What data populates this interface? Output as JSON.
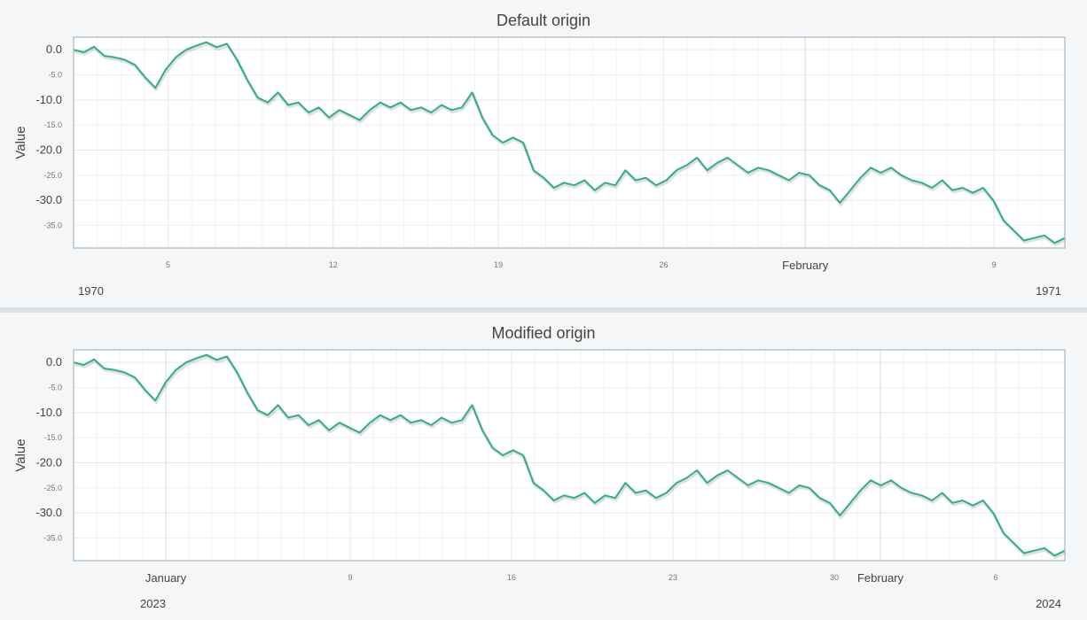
{
  "colors": {
    "line": "#2fae88",
    "grid": "#e6e6e6",
    "frame": "#a8b6c2",
    "background": "#ffffff"
  },
  "chart_data": [
    {
      "type": "line",
      "title": "Default origin",
      "ylabel": "Value",
      "xlabel": "",
      "ylim": [
        -39.5,
        2.5
      ],
      "yticks_major": [
        "0.0",
        "-10.0",
        "-20.0",
        "-30.0"
      ],
      "yticks_minor": [
        "-5.0",
        "-15.0",
        "-25.0",
        "-35.0"
      ],
      "xlim": [
        "1970-01-01",
        "1970-02-12"
      ],
      "xticks": [
        {
          "date": "1970-01-05",
          "label": "5",
          "major": false
        },
        {
          "date": "1970-01-12",
          "label": "12",
          "major": false
        },
        {
          "date": "1970-01-19",
          "label": "19",
          "major": false
        },
        {
          "date": "1970-01-26",
          "label": "26",
          "major": false
        },
        {
          "date": "1970-02-01",
          "label": "February",
          "major": true
        },
        {
          "date": "1970-02-09",
          "label": "9",
          "major": false
        }
      ],
      "year_labels": {
        "left": "1970",
        "right": "1971"
      },
      "series": [
        {
          "x_start": "1970-01-01",
          "x_end": "1970-02-12",
          "values": [
            0.0,
            -0.5,
            0.6,
            -1.2,
            -1.5,
            -2.0,
            -3.0,
            -5.5,
            -7.6,
            -4.0,
            -1.5,
            0.0,
            0.8,
            1.5,
            0.5,
            1.2,
            -2.0,
            -6.0,
            -9.5,
            -10.5,
            -8.5,
            -11.0,
            -10.5,
            -12.5,
            -11.5,
            -13.5,
            -12.0,
            -13.0,
            -14.0,
            -12.0,
            -10.5,
            -11.5,
            -10.5,
            -12.0,
            -11.5,
            -12.5,
            -11.0,
            -12.0,
            -11.5,
            -8.5,
            -13.5,
            -17.0,
            -18.5,
            -17.5,
            -18.5,
            -24.0,
            -25.5,
            -27.5,
            -26.5,
            -27.0,
            -26.0,
            -28.0,
            -26.5,
            -27.0,
            -24.0,
            -26.0,
            -25.5,
            -27.0,
            -26.0,
            -24.0,
            -23.0,
            -21.5,
            -24.0,
            -22.5,
            -21.5,
            -23.0,
            -24.5,
            -23.5,
            -24.0,
            -25.0,
            -26.0,
            -24.5,
            -25.0,
            -27.0,
            -28.0,
            -30.5,
            -28.0,
            -25.5,
            -23.5,
            -24.5,
            -23.5,
            -25.0,
            -26.0,
            -26.5,
            -27.5,
            -26.0,
            -28.0,
            -27.5,
            -28.5,
            -27.5,
            -30.0,
            -34.0,
            -36.0,
            -38.0,
            -37.5,
            -37.0,
            -38.5,
            -37.5
          ]
        }
      ]
    },
    {
      "type": "line",
      "title": "Modified origin",
      "ylabel": "Value",
      "xlabel": "",
      "ylim": [
        -39.5,
        2.5
      ],
      "yticks_major": [
        "0.0",
        "-10.0",
        "-20.0",
        "-30.0"
      ],
      "yticks_minor": [
        "-5.0",
        "-15.0",
        "-25.0",
        "-35.0"
      ],
      "xlim": [
        "2022-12-28",
        "2023-02-09"
      ],
      "xticks": [
        {
          "date": "2023-01-01",
          "label": "January",
          "major": true
        },
        {
          "date": "2023-01-09",
          "label": "9",
          "major": false
        },
        {
          "date": "2023-01-16",
          "label": "16",
          "major": false
        },
        {
          "date": "2023-01-23",
          "label": "23",
          "major": false
        },
        {
          "date": "2023-01-30",
          "label": "30",
          "major": false
        },
        {
          "date": "2023-02-01",
          "label": "February",
          "major": true
        },
        {
          "date": "2023-02-06",
          "label": "6",
          "major": false
        }
      ],
      "year_labels": {
        "left": "2023",
        "right": "2024"
      },
      "series": [
        {
          "x_start": "2022-12-28",
          "x_end": "2023-02-09",
          "values": [
            0.0,
            -0.5,
            0.6,
            -1.2,
            -1.5,
            -2.0,
            -3.0,
            -5.5,
            -7.6,
            -4.0,
            -1.5,
            0.0,
            0.8,
            1.5,
            0.5,
            1.2,
            -2.0,
            -6.0,
            -9.5,
            -10.5,
            -8.5,
            -11.0,
            -10.5,
            -12.5,
            -11.5,
            -13.5,
            -12.0,
            -13.0,
            -14.0,
            -12.0,
            -10.5,
            -11.5,
            -10.5,
            -12.0,
            -11.5,
            -12.5,
            -11.0,
            -12.0,
            -11.5,
            -8.5,
            -13.5,
            -17.0,
            -18.5,
            -17.5,
            -18.5,
            -24.0,
            -25.5,
            -27.5,
            -26.5,
            -27.0,
            -26.0,
            -28.0,
            -26.5,
            -27.0,
            -24.0,
            -26.0,
            -25.5,
            -27.0,
            -26.0,
            -24.0,
            -23.0,
            -21.5,
            -24.0,
            -22.5,
            -21.5,
            -23.0,
            -24.5,
            -23.5,
            -24.0,
            -25.0,
            -26.0,
            -24.5,
            -25.0,
            -27.0,
            -28.0,
            -30.5,
            -28.0,
            -25.5,
            -23.5,
            -24.5,
            -23.5,
            -25.0,
            -26.0,
            -26.5,
            -27.5,
            -26.0,
            -28.0,
            -27.5,
            -28.5,
            -27.5,
            -30.0,
            -34.0,
            -36.0,
            -38.0,
            -37.5,
            -37.0,
            -38.5,
            -37.5
          ]
        }
      ]
    }
  ]
}
